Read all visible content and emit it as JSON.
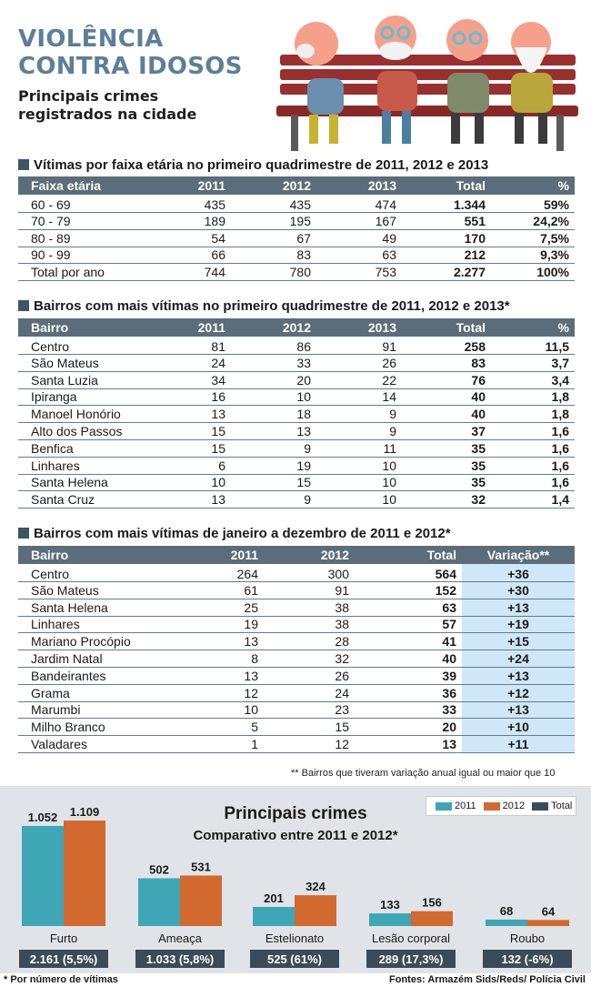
{
  "header": {
    "title_line1": "VIOLÊNCIA",
    "title_line2": "CONTRA IDOSOS",
    "subtitle_line1": "Principais crimes",
    "subtitle_line2": "registrados  na cidade"
  },
  "table1": {
    "title": "Vítimas por faixa etária no primeiro quadrimestre de 2011, 2012 e 2013",
    "headers": [
      "Faixa etária",
      "2011",
      "2012",
      "2013",
      "Total",
      "%"
    ],
    "rows": [
      [
        "60 - 69",
        "435",
        "435",
        "474",
        "1.344",
        "59%"
      ],
      [
        "70 - 79",
        "189",
        "195",
        "167",
        "551",
        "24,2%"
      ],
      [
        "80 - 89",
        "54",
        "67",
        "49",
        "170",
        "7,5%"
      ],
      [
        "90 - 99",
        "66",
        "83",
        "63",
        "212",
        "9,3%"
      ],
      [
        "Total por ano",
        "744",
        "780",
        "753",
        "2.277",
        "100%"
      ]
    ]
  },
  "table2": {
    "title": "Bairros com mais vítimas no primeiro quadrimestre de 2011, 2012 e 2013*",
    "headers": [
      "Bairro",
      "2011",
      "2012",
      "2013",
      "Total",
      "%"
    ],
    "rows": [
      [
        "Centro",
        "81",
        "86",
        "91",
        "258",
        "11,5"
      ],
      [
        "São Mateus",
        "24",
        "33",
        "26",
        "83",
        "3,7"
      ],
      [
        "Santa Luzia",
        "34",
        "20",
        "22",
        "76",
        "3,4"
      ],
      [
        "Ipiranga",
        "16",
        "10",
        "14",
        "40",
        "1,8"
      ],
      [
        "Manoel Honório",
        "13",
        "18",
        "9",
        "40",
        "1,8"
      ],
      [
        "Alto dos Passos",
        "15",
        "13",
        "9",
        "37",
        "1,6"
      ],
      [
        "Benfica",
        "15",
        "9",
        "11",
        "35",
        "1,6"
      ],
      [
        "Linhares",
        "6",
        "19",
        "10",
        "35",
        "1,6"
      ],
      [
        "Santa Helena",
        "10",
        "15",
        "10",
        "35",
        "1,6"
      ],
      [
        "Santa Cruz",
        "13",
        "9",
        "10",
        "32",
        "1,4"
      ]
    ]
  },
  "table3": {
    "title": "Bairros com mais vítimas de janeiro a dezembro de 2011 e 2012*",
    "headers": [
      "Bairro",
      "2011",
      "2012",
      "Total",
      "Variação**"
    ],
    "rows": [
      [
        "Centro",
        "264",
        "300",
        "564",
        "+36"
      ],
      [
        "São Mateus",
        "61",
        "91",
        "152",
        "+30"
      ],
      [
        "Santa Helena",
        "25",
        "38",
        "63",
        "+13"
      ],
      [
        "Linhares",
        "19",
        "38",
        "57",
        "+19"
      ],
      [
        "Mariano Procópio",
        "13",
        "28",
        "41",
        "+15"
      ],
      [
        "Jardim Natal",
        "8",
        "32",
        "40",
        "+24"
      ],
      [
        "Bandeirantes",
        "13",
        "26",
        "39",
        "+13"
      ],
      [
        "Grama",
        "12",
        "24",
        "36",
        "+12"
      ],
      [
        "Marumbi",
        "10",
        "23",
        "33",
        "+13"
      ],
      [
        "Milho Branco",
        "5",
        "15",
        "20",
        "+10"
      ],
      [
        "Valadares",
        "1",
        "12",
        "13",
        "+11"
      ]
    ],
    "footnote": "** Bairros que tiveram variação anual igual ou maior que 10"
  },
  "chart_data": {
    "type": "bar",
    "title": "Principais crimes",
    "subtitle": "Comparativo entre 2011 e 2012*",
    "categories": [
      "Furto",
      "Ameaça",
      "Estelionato",
      "Lesão corporal",
      "Roubo"
    ],
    "series": [
      {
        "name": "2011",
        "values": [
          1052,
          502,
          201,
          133,
          68
        ],
        "labels": [
          "1.052",
          "502",
          "201",
          "133",
          "68"
        ],
        "color": "#3ea6b5"
      },
      {
        "name": "2012",
        "values": [
          1109,
          531,
          324,
          156,
          64
        ],
        "labels": [
          "1.109",
          "531",
          "324",
          "156",
          "64"
        ],
        "color": "#d26a30"
      }
    ],
    "totals": [
      "2.161 (5,5%)",
      "1.033 (5,8%)",
      "525 (61%)",
      "289 (17,3%)",
      "132 (-6%)"
    ],
    "legend": [
      {
        "name": "2011",
        "color": "#3ea6b5"
      },
      {
        "name": "2012",
        "color": "#d26a30"
      },
      {
        "name": "Total",
        "color": "#3b4c58"
      }
    ],
    "legend_position": "top-right",
    "grid": false
  },
  "footer": {
    "left": "* Por número de vítimas",
    "right": "Fontes: Armazém Sids/Reds/ Polícia Civil"
  }
}
